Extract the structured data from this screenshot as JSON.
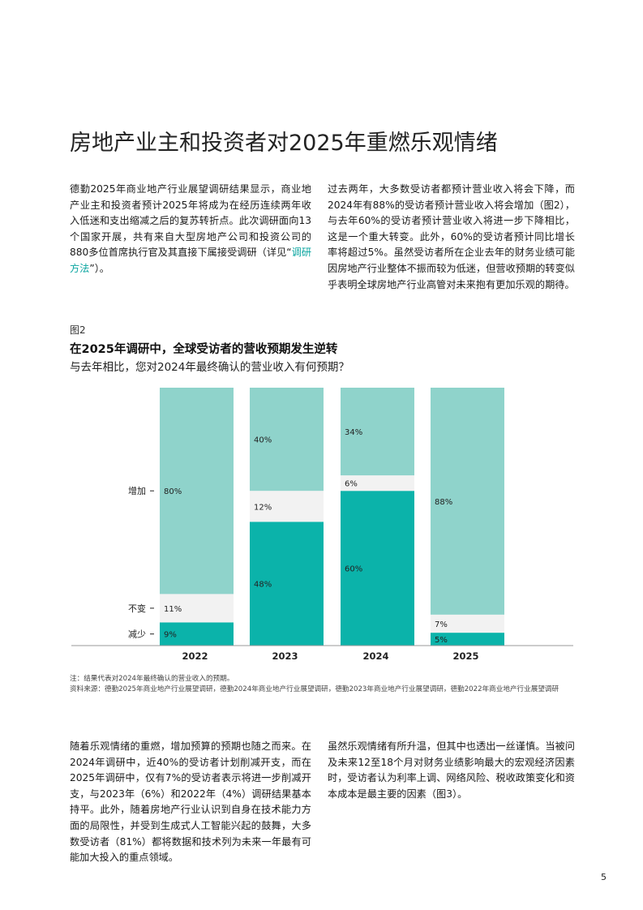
{
  "title": "房地产业主和投资者对2025年重燃乐观情绪",
  "intro": {
    "left_before_link": "德勤2025年商业地产行业展望调研结果显示，商业地产业主和投资者预计2025年将成为在经历连续两年收入低迷和支出缩减之后的复苏转折点。此次调研面向13个国家开展，共有来自大型房地产公司和投资公司的880多位首席执行官及其直接下属接受调研（详见“",
    "link_text": "调研方法",
    "left_after_link": "”）。",
    "right": "过去两年，大多数受访者都预计营业收入将会下降，而2024年有88%的受访者预计营业收入将会增加（图2），与去年60%的受访者预计营业收入将进一步下降相比，这是一个重大转变。此外，60%的受访者预计同比增长率将超过5%。虽然受访者所在企业去年的财务业绩可能因房地产行业整体不振而较为低迷，但营收预期的转变似乎表明全球房地产行业高管对未来抱有更加乐观的期待。"
  },
  "figure": {
    "label": "图2",
    "title": "在2025年调研中，全球受访者的营收预期发生逆转",
    "subtitle": "与去年相比，您对2024年最终确认的营业收入有何预期？"
  },
  "chart_data": {
    "type": "bar",
    "stacked": true,
    "categories": [
      "2022",
      "2023",
      "2024",
      "2025"
    ],
    "series": [
      {
        "name": "减少",
        "values": [
          9,
          48,
          60,
          5
        ],
        "labels": [
          "9%",
          "48%",
          "60%",
          "5%"
        ],
        "color": "#0bb3aa"
      },
      {
        "name": "不变",
        "values": [
          11,
          12,
          6,
          7
        ],
        "labels": [
          "11%",
          "12%",
          "6%",
          "7%"
        ],
        "color": "#f2f2f2"
      },
      {
        "name": "增加",
        "values": [
          80,
          40,
          34,
          88
        ],
        "labels": [
          "80%",
          "40%",
          "34%",
          "88%"
        ],
        "color": "#8fd3cb"
      }
    ],
    "row_labels": [
      "增加",
      "不变",
      "减少"
    ],
    "ylim": [
      0,
      100
    ],
    "legend": "left (row labels)",
    "grid": false
  },
  "notes": {
    "note": "注：结果代表对2024年最终确认的营业收入的预期。",
    "source": "资料来源：德勤2025年商业地产行业展望调研，德勤2024年商业地产行业展望调研，德勤2023年商业地产行业展望调研，德勤2022年商业地产行业展望调研"
  },
  "bottom": {
    "left": "随着乐观情绪的重燃，增加预算的预期也随之而来。在2024年调研中，近40%的受访者计划削减开支，而在2025年调研中，仅有7%的受访者表示将进一步削减开支，与2023年（6%）和2022年（4%）调研结果基本持平。此外，随着房地产行业认识到自身在技术能力方面的局限性，并受到生成式人工智能兴起的鼓舞，大多数受访者（81%）都将数据和技术列为未来一年最有可能加大投入的重点领域。",
    "right": "虽然乐观情绪有所升温，但其中也透出一丝谨慎。当被问及未来12至18个月对财务业绩影响最大的宏观经济因素时，受访者认为利率上调、网络风险、税收政策变化和资本成本是最主要的因素（图3）。"
  },
  "page_number": "5"
}
